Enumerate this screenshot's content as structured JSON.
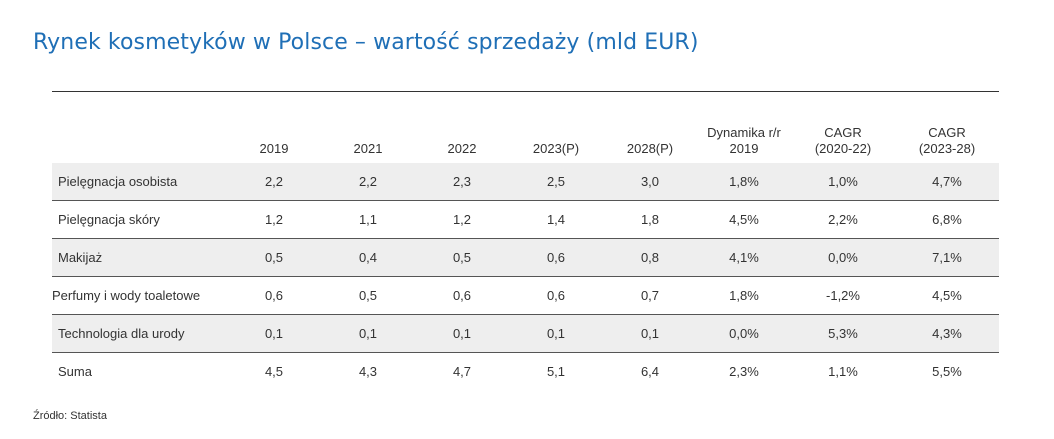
{
  "title": "Rynek kosmetyków w Polsce – wartość sprzedaży (mld EUR)",
  "table": {
    "headers": [
      {
        "lines": [
          ""
        ]
      },
      {
        "lines": [
          "2019"
        ]
      },
      {
        "lines": [
          "2021"
        ]
      },
      {
        "lines": [
          "2022"
        ]
      },
      {
        "lines": [
          "2023(P)"
        ]
      },
      {
        "lines": [
          "2028(P)"
        ]
      },
      {
        "lines": [
          "Dynamika r/r",
          "2019"
        ]
      },
      {
        "lines": [
          "CAGR",
          "(2020-22)"
        ]
      },
      {
        "lines": [
          "CAGR",
          "(2023-28)"
        ]
      }
    ],
    "rows": [
      {
        "label": "Pielęgnacja osobista",
        "values": [
          "2,2",
          "2,2",
          "2,3",
          "2,5",
          "3,0",
          "1,8%",
          "1,0%",
          "4,7%"
        ]
      },
      {
        "label": "Pielęgnacja skóry",
        "values": [
          "1,2",
          "1,1",
          "1,2",
          "1,4",
          "1,8",
          "4,5%",
          "2,2%",
          "6,8%"
        ]
      },
      {
        "label": "Makijaż",
        "values": [
          "0,5",
          "0,4",
          "0,5",
          "0,6",
          "0,8",
          "4,1%",
          "0,0%",
          "7,1%"
        ]
      },
      {
        "label": "Perfumy i wody toaletowe",
        "values": [
          "0,6",
          "0,5",
          "0,6",
          "0,6",
          "0,7",
          "1,8%",
          "-1,2%",
          "4,5%"
        ]
      },
      {
        "label": "Technologia dla urody",
        "values": [
          "0,1",
          "0,1",
          "0,1",
          "0,1",
          "0,1",
          "0,0%",
          "5,3%",
          "4,3%"
        ]
      },
      {
        "label": "Suma",
        "values": [
          "4,5",
          "4,3",
          "4,7",
          "5,1",
          "6,4",
          "2,3%",
          "1,1%",
          "5,5%"
        ]
      }
    ]
  },
  "source": "Źródło: Statista",
  "colors": {
    "title": "#1f6fb6",
    "row_shade": "#eeeeee",
    "text": "#333333"
  }
}
